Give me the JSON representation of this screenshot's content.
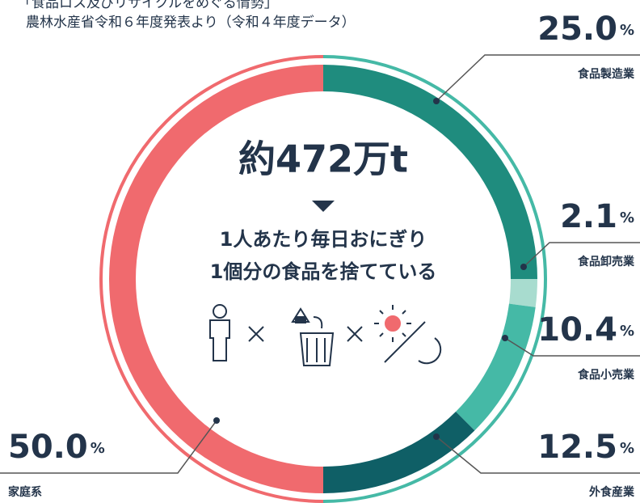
{
  "chart_data": {
    "type": "pie",
    "source_title": "「食品ロス及びリサイクルをめぐる情勢」",
    "source_note": "農林水産省令和６年度発表より（令和４年度データ）",
    "center_total": "約472万t",
    "center_line1": "1人あたり毎日おにぎり",
    "center_line2": "1個分の食品を捨てている",
    "unit": "%",
    "categories": [
      "食品製造業",
      "食品卸売業",
      "食品小売業",
      "外食産業",
      "家庭系"
    ],
    "values": [
      25.0,
      2.1,
      10.4,
      12.5,
      50.0
    ],
    "value_labels": [
      "25.0",
      "2.1",
      "10.4",
      "12.5",
      "50.0"
    ],
    "colors": [
      "#1f8c7e",
      "#a8dccf",
      "#45b9a6",
      "#0f5f66",
      "#f06a6e"
    ]
  }
}
